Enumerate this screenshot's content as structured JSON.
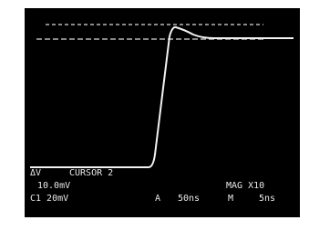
{
  "screen": {
    "cursor_label": "ΔV",
    "cursor_mode": "CURSOR 2",
    "cursor_value": "10.0mV",
    "magnification": "MAG X10",
    "channel": "C1 20mV",
    "trigger_label": "A",
    "timebase_a": "50ns",
    "timebase_m_label": "M",
    "timebase_m": "5ns"
  }
}
